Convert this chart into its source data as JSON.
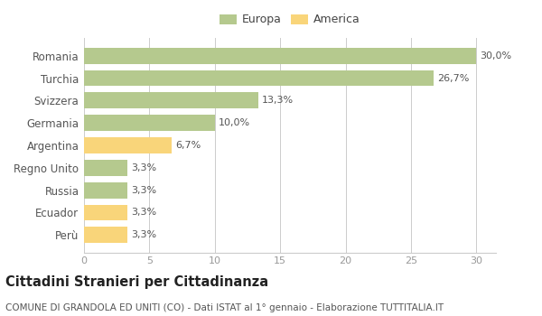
{
  "categories": [
    "Perù",
    "Ecuador",
    "Russia",
    "Regno Unito",
    "Argentina",
    "Germania",
    "Svizzera",
    "Turchia",
    "Romania"
  ],
  "values": [
    3.3,
    3.3,
    3.3,
    3.3,
    6.7,
    10.0,
    13.3,
    26.7,
    30.0
  ],
  "labels": [
    "3,3%",
    "3,3%",
    "3,3%",
    "3,3%",
    "6,7%",
    "10,0%",
    "13,3%",
    "26,7%",
    "30,0%"
  ],
  "colors": [
    "#f9d57a",
    "#f9d57a",
    "#b5c98e",
    "#b5c98e",
    "#f9d57a",
    "#b5c98e",
    "#b5c98e",
    "#b5c98e",
    "#b5c98e"
  ],
  "legend_europa_color": "#b5c98e",
  "legend_america_color": "#f9d57a",
  "xlim": [
    0,
    31.5
  ],
  "xticks": [
    0,
    5,
    10,
    15,
    20,
    25,
    30
  ],
  "title": "Cittadini Stranieri per Cittadinanza",
  "subtitle": "COMUNE DI GRANDOLA ED UNITI (CO) - Dati ISTAT al 1° gennaio - Elaborazione TUTTITALIA.IT",
  "background_color": "#ffffff",
  "bar_height": 0.72,
  "grid_color": "#cccccc",
  "label_fontsize": 8,
  "tick_fontsize": 8,
  "ytick_fontsize": 8.5,
  "title_fontsize": 10.5,
  "subtitle_fontsize": 7.5,
  "label_color": "#555555",
  "ytick_color": "#555555",
  "xtick_color": "#999999"
}
